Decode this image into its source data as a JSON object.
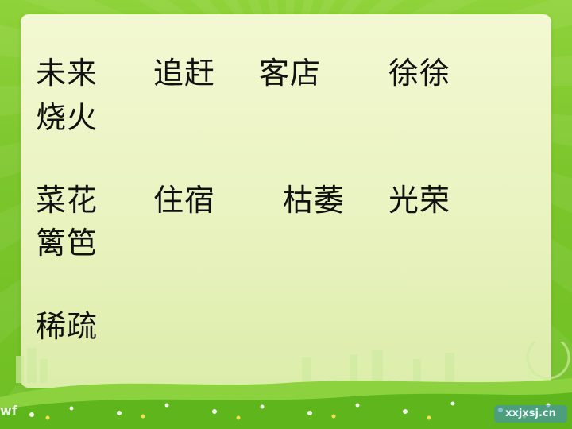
{
  "words": {
    "r1": [
      "未来",
      "追赶",
      "客店",
      "徐徐"
    ],
    "r1b": "烧火",
    "r2": [
      "菜花",
      "住宿",
      "枯萎",
      "光荣"
    ],
    "r2b": "篱笆",
    "r3": "稀疏"
  },
  "logos": {
    "left": "wf",
    "right": "xxjxsj.cn"
  },
  "colors": {
    "panel": "#eef6c8",
    "grass": "#6fbf22",
    "text": "#111111"
  }
}
